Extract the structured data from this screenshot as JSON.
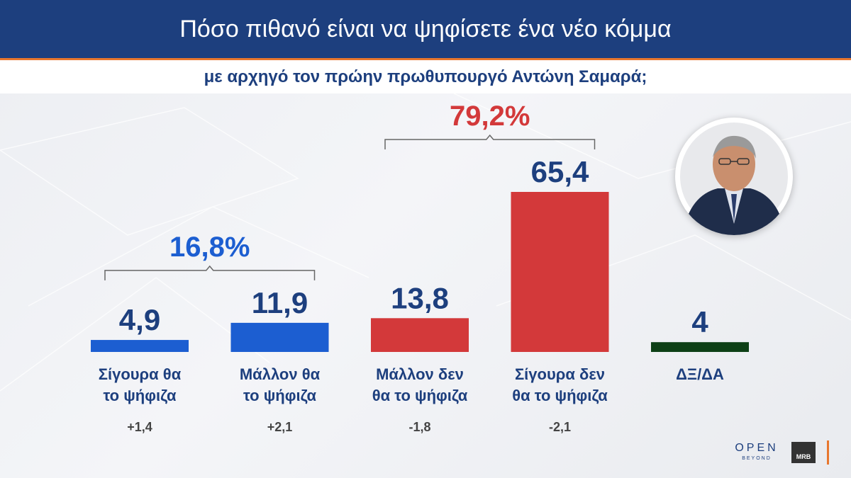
{
  "header": {
    "title": "Πόσο πιθανό είναι να ψηφίσετε ένα νέο κόμμα",
    "subtitle": "με αρχηγό τον πρώην πρωθυπουργό Αντώνη Σαμαρά;"
  },
  "chart_data": {
    "type": "bar",
    "categories": [
      [
        "Σίγουρα θα",
        "το ψήφιζα"
      ],
      [
        "Μάλλον θα",
        "το ψήφιζα"
      ],
      [
        "Μάλλον δεν",
        "θα το ψήφιζα"
      ],
      [
        "Σίγουρα δεν",
        "θα το ψήφιζα"
      ],
      [
        "ΔΞ/ΔΑ"
      ]
    ],
    "values": [
      4.9,
      11.9,
      13.8,
      65.4,
      4
    ],
    "value_labels": [
      "4,9",
      "11,9",
      "13,8",
      "65,4",
      "4"
    ],
    "changes": [
      "+1,4",
      "+2,1",
      "-1,8",
      "-2,1",
      ""
    ],
    "bar_colors": [
      "#1c5ed1",
      "#1c5ed1",
      "#d3393a",
      "#d3393a",
      "#0d4016"
    ],
    "groups": [
      {
        "label": "16,8%",
        "from": 0,
        "to": 1,
        "color": "#1c5ed1"
      },
      {
        "label": "79,2%",
        "from": 2,
        "to": 3,
        "color": "#d3393a"
      }
    ],
    "ylim": [
      0,
      65.4
    ]
  },
  "colors": {
    "header_bg": "#1d3f7e",
    "accent": "#e8772e",
    "value_text": "#1d3f7e",
    "label_text": "#1d3f7e",
    "change_text": "#444444"
  },
  "logos": {
    "open": "OPEN",
    "beyond": "BEYOND",
    "mrb": "MRB"
  }
}
